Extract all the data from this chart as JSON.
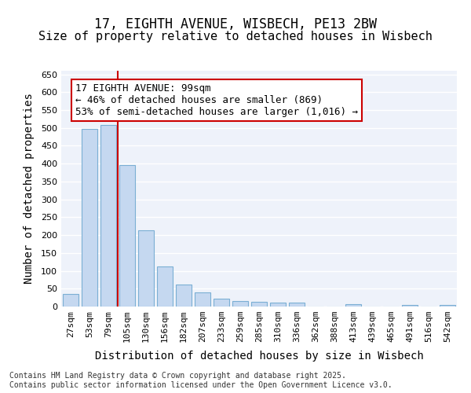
{
  "title1": "17, EIGHTH AVENUE, WISBECH, PE13 2BW",
  "title2": "Size of property relative to detached houses in Wisbech",
  "xlabel": "Distribution of detached houses by size in Wisbech",
  "ylabel": "Number of detached properties",
  "categories": [
    "27sqm",
    "53sqm",
    "79sqm",
    "105sqm",
    "130sqm",
    "156sqm",
    "182sqm",
    "207sqm",
    "233sqm",
    "259sqm",
    "285sqm",
    "310sqm",
    "336sqm",
    "362sqm",
    "388sqm",
    "413sqm",
    "439sqm",
    "465sqm",
    "491sqm",
    "516sqm",
    "542sqm"
  ],
  "values": [
    35,
    498,
    508,
    396,
    214,
    112,
    62,
    40,
    21,
    15,
    13,
    11,
    10,
    0,
    0,
    6,
    0,
    0,
    4,
    0,
    5
  ],
  "bar_color": "#c5d8f0",
  "bar_edge_color": "#7bafd4",
  "vline_color": "#cc0000",
  "annotation_text": "17 EIGHTH AVENUE: 99sqm\n← 46% of detached houses are smaller (869)\n53% of semi-detached houses are larger (1,016) →",
  "annotation_box_color": "#ffffff",
  "annotation_box_edge": "#cc0000",
  "ylim": [
    0,
    660
  ],
  "yticks": [
    0,
    50,
    100,
    150,
    200,
    250,
    300,
    350,
    400,
    450,
    500,
    550,
    600,
    650
  ],
  "background_color": "#eef2fa",
  "footer_text": "Contains HM Land Registry data © Crown copyright and database right 2025.\nContains public sector information licensed under the Open Government Licence v3.0.",
  "title_fontsize": 12,
  "subtitle_fontsize": 11,
  "tick_fontsize": 8,
  "label_fontsize": 10,
  "annotation_fontsize": 9,
  "footer_fontsize": 7
}
